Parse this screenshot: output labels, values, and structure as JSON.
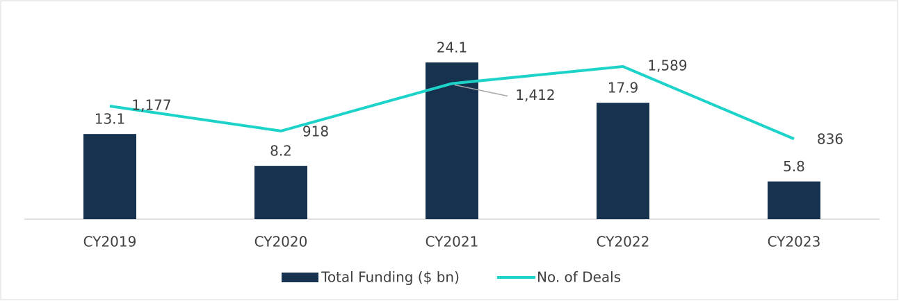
{
  "chart_data": {
    "type": "bar_line",
    "categories": [
      "CY2019",
      "CY2020",
      "CY2021",
      "CY2022",
      "CY2023"
    ],
    "series": [
      {
        "name": "Total Funding ($ bn)",
        "type": "bar",
        "color": "#16324f",
        "values": [
          13.1,
          8.2,
          24.1,
          17.9,
          5.8
        ]
      },
      {
        "name": "No. of Deals",
        "type": "line",
        "axis": "y2",
        "color": "#1dd3c9",
        "values": [
          1177,
          918,
          1412,
          1589,
          836
        ],
        "value_labels": [
          "1,177",
          "918",
          "1,412",
          "1,589",
          "836"
        ]
      }
    ],
    "ylim": [
      0,
      25.6
    ],
    "y2lim": [
      0,
      1733
    ],
    "grid": false,
    "legend": "bottom"
  }
}
